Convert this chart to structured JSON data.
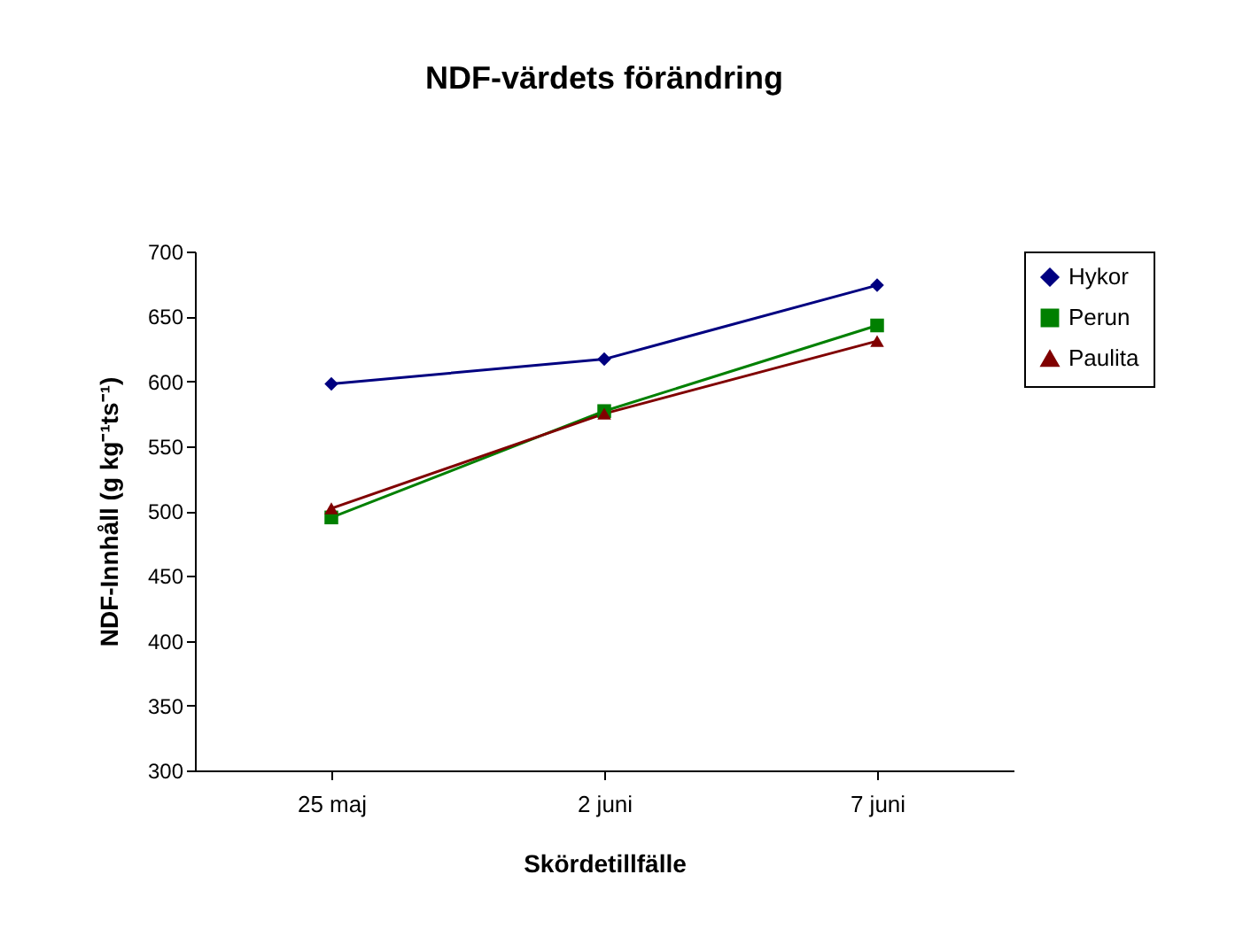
{
  "chart_data": {
    "type": "line",
    "title": "NDF-värdets förändring",
    "xlabel": "Skördetillfälle",
    "ylabel": "NDF-Innhåll (g kg⁻¹ts⁻¹)",
    "categories": [
      "25 maj",
      "2 juni",
      "7 juni"
    ],
    "series": [
      {
        "name": "Hykor",
        "color": "#000080",
        "marker": "diamond",
        "values": [
          598,
          617,
          674
        ]
      },
      {
        "name": "Perun",
        "color": "#008000",
        "marker": "square",
        "values": [
          495,
          577,
          643
        ]
      },
      {
        "name": "Paulita",
        "color": "#800000",
        "marker": "triangle",
        "values": [
          502,
          575,
          631
        ]
      }
    ],
    "ylim": [
      300,
      700
    ],
    "yticks": [
      300,
      350,
      400,
      450,
      500,
      550,
      600,
      650,
      700
    ],
    "grid": false,
    "legend": "right"
  }
}
